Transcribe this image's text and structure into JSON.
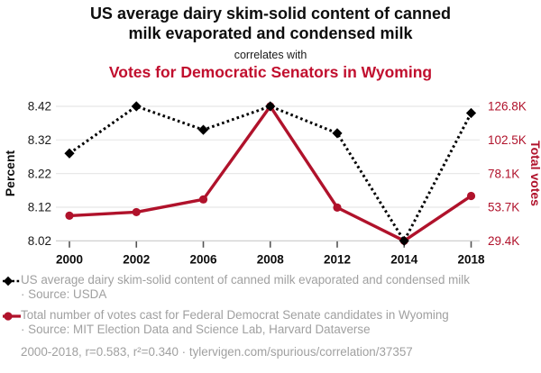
{
  "header": {
    "title_line1": "US average dairy skim-solid content of canned",
    "title_line2": "milk evaporated and condensed milk",
    "connector": "correlates with",
    "subtitle": "Votes for Democratic Senators in Wyoming"
  },
  "chart_data": {
    "type": "line",
    "x": [
      2000,
      2002,
      2006,
      2008,
      2012,
      2014,
      2018
    ],
    "x_tick_labels": [
      "2000",
      "2002",
      "2006",
      "2008",
      "2012",
      "2014",
      "2018"
    ],
    "series": [
      {
        "name": "US average dairy skim-solid content of canned milk evaporated and condensed milk",
        "axis": "left",
        "values": [
          8.28,
          8.42,
          8.35,
          8.42,
          8.34,
          8.02,
          8.4
        ],
        "color": "#000000",
        "line_style": "dotted",
        "marker": "diamond"
      },
      {
        "name": "Total number of votes cast for Federal Democrat Senate candidates in Wyoming",
        "axis": "right",
        "values": [
          47600,
          50200,
          59400,
          126800,
          53500,
          29400,
          61900
        ],
        "color": "#b0122b",
        "line_style": "solid",
        "marker": "circle"
      }
    ],
    "left_axis": {
      "label": "Percent",
      "range": [
        8.02,
        8.42
      ],
      "ticks": [
        8.02,
        8.12,
        8.22,
        8.32,
        8.42
      ],
      "tick_labels": [
        "8.02",
        "8.12",
        "8.22",
        "8.32",
        "8.42"
      ]
    },
    "right_axis": {
      "label": "Total votes",
      "range": [
        29400,
        126800
      ],
      "ticks": [
        29400,
        53700,
        78100,
        102500,
        126800
      ],
      "tick_labels": [
        "29.4K",
        "53.7K",
        "78.1K",
        "102.5K",
        "126.8K"
      ]
    },
    "grid": true,
    "legend_position": "below"
  },
  "legend": {
    "items": [
      {
        "label": "US average dairy skim-solid content of canned milk evaporated and condensed milk",
        "source": "· Source: USDA",
        "color": "#000000",
        "symbol": "diamond-dotted-line"
      },
      {
        "label": "Total number of votes cast for Federal Democrat Senate candidates in Wyoming",
        "source": "· Source: MIT Election Data and Science Lab, Harvard Dataverse",
        "color": "#b0122b",
        "symbol": "circle-solid-line"
      }
    ]
  },
  "footer": "2000-2018, r=0.583, r²=0.340 · tylervigen.com/spurious/correlation/37357",
  "colors": {
    "subtitle_red": "#c10f2e",
    "series_red": "#b0122b",
    "text_black": "#0d0d0d",
    "legend_gray": "#a0a0a0",
    "grid_gray": "#e8e8e8",
    "axis_gray": "#c9c9c9",
    "tick_gray": "#555555"
  }
}
